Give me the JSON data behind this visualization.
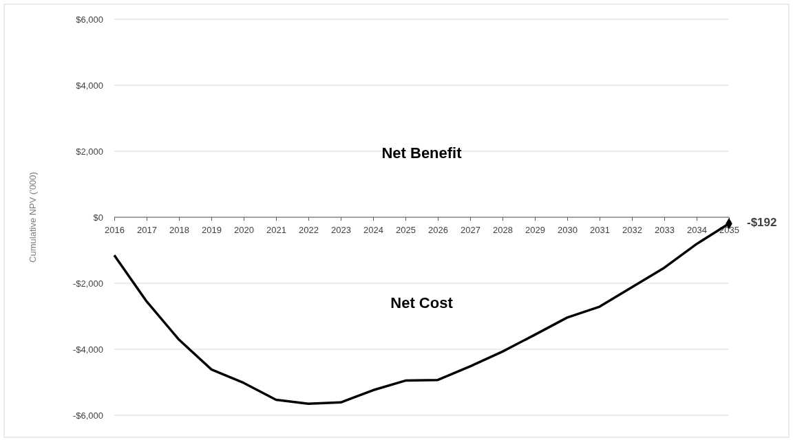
{
  "chart_data": {
    "type": "line",
    "ylabel": "Cumulative NPV ('000)",
    "categories": [
      "2016",
      "2017",
      "2018",
      "2019",
      "2020",
      "2021",
      "2022",
      "2023",
      "2024",
      "2025",
      "2026",
      "2027",
      "2028",
      "2029",
      "2030",
      "2031",
      "2032",
      "2033",
      "2034",
      "2035"
    ],
    "series": [
      {
        "color": "#000000",
        "values": [
          -1150,
          -2550,
          -3710,
          -4610,
          -5020,
          -5530,
          -5650,
          -5610,
          -5240,
          -4950,
          -4930,
          -4520,
          -4070,
          -3560,
          -3040,
          -2710,
          -2120,
          -1530,
          -810,
          -192
        ],
        "value_labels": [
          null,
          null,
          null,
          null,
          null,
          null,
          null,
          null,
          null,
          null,
          null,
          null,
          null,
          null,
          null,
          null,
          null,
          null,
          null,
          "-$192"
        ]
      }
    ],
    "ylim": [
      -6000,
      6000
    ],
    "yticks": [
      {
        "value": -6000,
        "label": "-$6,000"
      },
      {
        "value": -4000,
        "label": "-$4,000"
      },
      {
        "value": -2000,
        "label": "-$2,000"
      },
      {
        "value": 0,
        "label": "$0"
      },
      {
        "value": 2000,
        "label": "$2,000"
      },
      {
        "value": 4000,
        "label": "$4,000"
      },
      {
        "value": 6000,
        "label": "$6,000"
      }
    ],
    "grid": "y",
    "marker": "none",
    "line_style": "solid",
    "annotations": [
      "Net Benefit",
      "Net Cost"
    ]
  }
}
